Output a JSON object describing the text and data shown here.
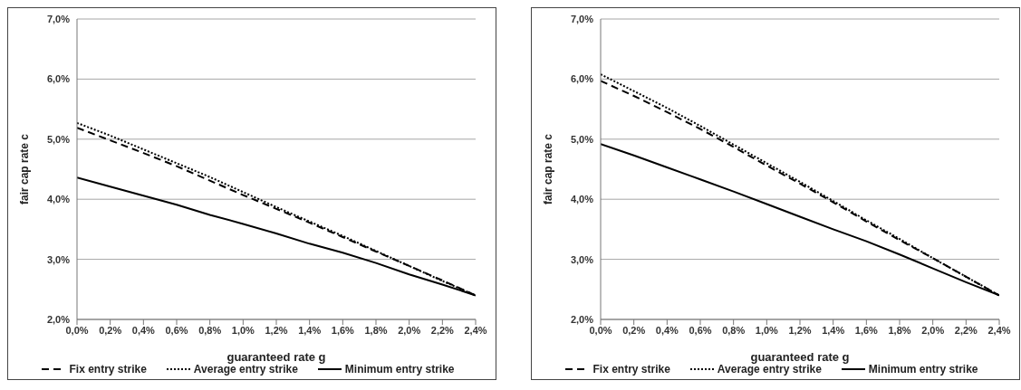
{
  "chart_data": [
    {
      "type": "line",
      "xlabel": "guaranteed rate g",
      "ylabel": "fair cap rate c",
      "x": [
        0,
        0.2,
        0.4,
        0.6,
        0.8,
        1.0,
        1.2,
        1.4,
        1.6,
        1.8,
        2.0,
        2.2,
        2.4
      ],
      "series": [
        {
          "name": "Fix entry strike",
          "color": "#000000",
          "line_style": "dashed",
          "values": [
            5.19,
            4.98,
            4.77,
            4.55,
            4.31,
            4.07,
            3.84,
            3.61,
            3.37,
            3.13,
            2.89,
            2.65,
            2.4
          ]
        },
        {
          "name": "Average entry strike",
          "color": "#000000",
          "line_style": "dotted",
          "values": [
            5.27,
            5.06,
            4.83,
            4.6,
            4.37,
            4.12,
            3.87,
            3.63,
            3.39,
            3.14,
            2.89,
            2.64,
            2.4
          ]
        },
        {
          "name": "Minimum entry strike",
          "color": "#000000",
          "line_style": "solid",
          "values": [
            4.36,
            4.21,
            4.06,
            3.91,
            3.74,
            3.59,
            3.43,
            3.26,
            3.11,
            2.94,
            2.75,
            2.58,
            2.4
          ]
        }
      ],
      "xlim": [
        0,
        2.4
      ],
      "xticks": [
        {
          "value": 0,
          "label": "0,0%"
        },
        {
          "value": 0.2,
          "label": "0,2%"
        },
        {
          "value": 0.4,
          "label": "0,4%"
        },
        {
          "value": 0.6,
          "label": "0,6%"
        },
        {
          "value": 0.8,
          "label": "0,8%"
        },
        {
          "value": 1.0,
          "label": "1,0%"
        },
        {
          "value": 1.2,
          "label": "1,2%"
        },
        {
          "value": 1.4,
          "label": "1,4%"
        },
        {
          "value": 1.6,
          "label": "1,6%"
        },
        {
          "value": 1.8,
          "label": "1,8%"
        },
        {
          "value": 2.0,
          "label": "2,0%"
        },
        {
          "value": 2.2,
          "label": "2,2%"
        },
        {
          "value": 2.4,
          "label": "2,4%"
        }
      ],
      "ylim": [
        2,
        7
      ],
      "yticks": [
        {
          "value": 2,
          "label": "2,0%"
        },
        {
          "value": 3,
          "label": "3,0%"
        },
        {
          "value": 4,
          "label": "4,0%"
        },
        {
          "value": 5,
          "label": "5,0%"
        },
        {
          "value": 6,
          "label": "6,0%"
        },
        {
          "value": 7,
          "label": "7,0%"
        }
      ],
      "grid": "y",
      "legend": "bottom",
      "marker": "none"
    },
    {
      "type": "line",
      "xlabel": "guaranteed rate g",
      "ylabel": "fair cap rate c",
      "x": [
        0,
        0.2,
        0.4,
        0.6,
        0.8,
        1.0,
        1.2,
        1.4,
        1.6,
        1.8,
        2.0,
        2.2,
        2.4
      ],
      "series": [
        {
          "name": "Fix entry strike",
          "color": "#000000",
          "line_style": "dashed",
          "values": [
            5.97,
            5.72,
            5.45,
            5.17,
            4.87,
            4.56,
            4.26,
            3.95,
            3.63,
            3.32,
            3.02,
            2.71,
            2.4
          ]
        },
        {
          "name": "Average entry strike",
          "color": "#000000",
          "line_style": "dotted",
          "values": [
            6.08,
            5.8,
            5.52,
            5.22,
            4.91,
            4.6,
            4.29,
            3.97,
            3.65,
            3.34,
            3.02,
            2.71,
            2.4
          ]
        },
        {
          "name": "Minimum entry strike",
          "color": "#000000",
          "line_style": "solid",
          "values": [
            4.92,
            4.73,
            4.53,
            4.33,
            4.13,
            3.92,
            3.71,
            3.5,
            3.3,
            3.08,
            2.85,
            2.62,
            2.4
          ]
        }
      ],
      "xlim": [
        0,
        2.4
      ],
      "xticks": [
        {
          "value": 0,
          "label": "0,0%"
        },
        {
          "value": 0.2,
          "label": "0,2%"
        },
        {
          "value": 0.4,
          "label": "0,4%"
        },
        {
          "value": 0.6,
          "label": "0,6%"
        },
        {
          "value": 0.8,
          "label": "0,8%"
        },
        {
          "value": 1.0,
          "label": "1,0%"
        },
        {
          "value": 1.2,
          "label": "1,2%"
        },
        {
          "value": 1.4,
          "label": "1,4%"
        },
        {
          "value": 1.6,
          "label": "1,6%"
        },
        {
          "value": 1.8,
          "label": "1,8%"
        },
        {
          "value": 2.0,
          "label": "2,0%"
        },
        {
          "value": 2.2,
          "label": "2,2%"
        },
        {
          "value": 2.4,
          "label": "2,4%"
        }
      ],
      "ylim": [
        2,
        7
      ],
      "yticks": [
        {
          "value": 2,
          "label": "2,0%"
        },
        {
          "value": 3,
          "label": "3,0%"
        },
        {
          "value": 4,
          "label": "4,0%"
        },
        {
          "value": 5,
          "label": "5,0%"
        },
        {
          "value": 6,
          "label": "6,0%"
        },
        {
          "value": 7,
          "label": "7,0%"
        }
      ],
      "grid": "y",
      "legend": "bottom",
      "marker": "none"
    }
  ]
}
